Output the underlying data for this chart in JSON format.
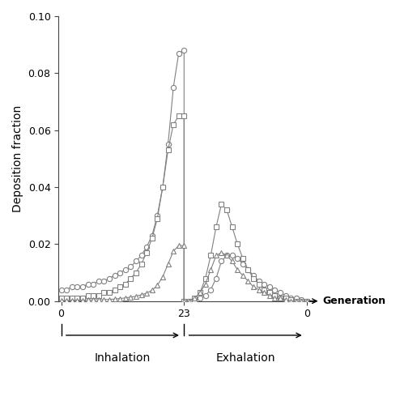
{
  "ylabel": "Deposition fraction",
  "xlabel_inhalation": "Inhalation",
  "xlabel_exhalation": "Exhalation",
  "xlabel_generation": "Generation",
  "ylim": [
    0,
    0.1
  ],
  "yticks": [
    0.0,
    0.02,
    0.04,
    0.06,
    0.08,
    0.1
  ],
  "line_color": "#808080",
  "circle_inhale": [
    0.004,
    0.004,
    0.005,
    0.005,
    0.005,
    0.006,
    0.006,
    0.007,
    0.007,
    0.008,
    0.009,
    0.01,
    0.011,
    0.012,
    0.014,
    0.016,
    0.019,
    0.023,
    0.03,
    0.04,
    0.055,
    0.075,
    0.087,
    0.088
  ],
  "square_inhale": [
    0.001,
    0.001,
    0.001,
    0.001,
    0.001,
    0.002,
    0.002,
    0.002,
    0.003,
    0.003,
    0.004,
    0.005,
    0.006,
    0.008,
    0.01,
    0.013,
    0.017,
    0.022,
    0.029,
    0.04,
    0.053,
    0.062,
    0.065,
    0.065
  ],
  "triangle_inhale": [
    0.0002,
    0.0002,
    0.0003,
    0.0003,
    0.0003,
    0.0004,
    0.0004,
    0.0005,
    0.0005,
    0.0006,
    0.0007,
    0.0009,
    0.0011,
    0.0014,
    0.0017,
    0.0022,
    0.0028,
    0.0038,
    0.0055,
    0.0085,
    0.013,
    0.0175,
    0.0195,
    0.0195
  ],
  "circle_exhale": [
    0.0,
    0.0,
    0.0,
    0.001,
    0.002,
    0.004,
    0.008,
    0.014,
    0.016,
    0.016,
    0.015,
    0.013,
    0.011,
    0.009,
    0.007,
    0.006,
    0.005,
    0.004,
    0.003,
    0.002,
    0.001,
    0.001,
    0.0005,
    0.0
  ],
  "square_exhale": [
    0.0,
    0.0,
    0.001,
    0.003,
    0.008,
    0.016,
    0.026,
    0.034,
    0.032,
    0.026,
    0.02,
    0.015,
    0.011,
    0.008,
    0.006,
    0.004,
    0.003,
    0.002,
    0.001,
    0.001,
    0.0005,
    0.0,
    0.0,
    0.0
  ],
  "triangle_exhale": [
    0.0,
    0.0,
    0.001,
    0.003,
    0.006,
    0.011,
    0.016,
    0.017,
    0.016,
    0.014,
    0.011,
    0.009,
    0.007,
    0.005,
    0.004,
    0.003,
    0.002,
    0.001,
    0.001,
    0.0005,
    0.0,
    0.0,
    0.0,
    0.0
  ]
}
